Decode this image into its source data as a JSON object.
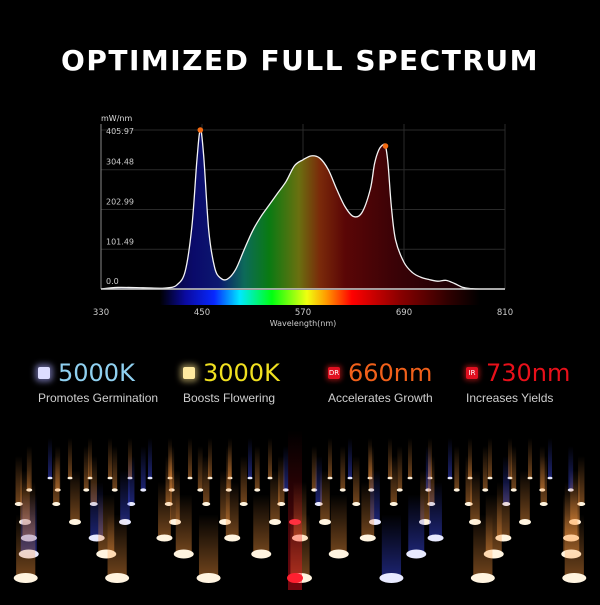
{
  "title": "OPTIMIZED FULL SPECTRUM",
  "chart_data": {
    "type": "area",
    "title": "",
    "xlabel": "Wavelength(nm)",
    "ylabel": "mW/nm",
    "xlim": [
      330,
      810
    ],
    "ylim": [
      0,
      405.97
    ],
    "x_ticks": [
      "330",
      "450",
      "570",
      "690",
      "810"
    ],
    "y_ticks": [
      "0.0",
      "101.49",
      "202.99",
      "304.48",
      "405.97"
    ],
    "grid": true,
    "legend": null,
    "x": [
      330,
      350,
      380,
      400,
      410,
      420,
      430,
      438,
      444,
      448,
      452,
      458,
      465,
      472,
      480,
      490,
      500,
      510,
      520,
      530,
      540,
      550,
      560,
      570,
      580,
      590,
      600,
      610,
      620,
      630,
      640,
      650,
      655,
      660,
      665,
      668,
      671,
      675,
      680,
      690,
      700,
      710,
      720,
      730,
      740,
      750,
      760,
      770,
      780,
      810
    ],
    "values": [
      0,
      4,
      3,
      2,
      3,
      10,
      45,
      160,
      330,
      405.97,
      340,
      150,
      55,
      28,
      25,
      50,
      100,
      148,
      185,
      215,
      245,
      275,
      315,
      330,
      340,
      334,
      305,
      255,
      210,
      185,
      195,
      255,
      320,
      355,
      368,
      365,
      320,
      210,
      125,
      68,
      42,
      30,
      24,
      20,
      22,
      14,
      4,
      1,
      0,
      0
    ],
    "peaks": [
      {
        "wavelength": 448,
        "value": 405.97,
        "marker_color": "#f26a12"
      },
      {
        "wavelength": 668,
        "value": 365,
        "marker_color": "#f26a12"
      }
    ],
    "spectrum_bar": {
      "from_nm": 400,
      "to_nm": 780
    }
  },
  "features": [
    {
      "value": "5000K",
      "desc": "Promotes Germination",
      "icon": "white-led-icon",
      "icon_label": "",
      "color": "#8fd0f0"
    },
    {
      "value": "3000K",
      "desc": "Boosts Flowering",
      "icon": "warm-led-icon",
      "icon_label": "",
      "color": "#f0e020"
    },
    {
      "value": "660nm",
      "desc": "Accelerates Growth",
      "icon": "deep-red-badge-icon",
      "icon_label": "DR",
      "color": "#f0601a"
    },
    {
      "value": "730nm",
      "desc": "Increases Yields",
      "icon": "infrared-badge-icon",
      "icon_label": "IR",
      "color": "#e8101a"
    }
  ]
}
